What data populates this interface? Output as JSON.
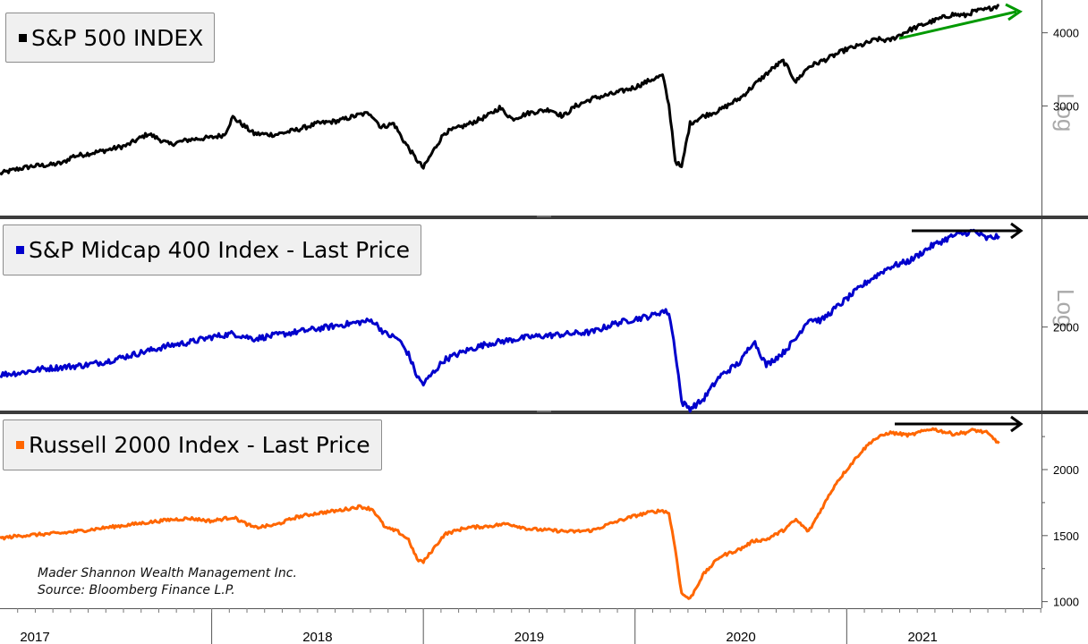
{
  "chart_data": [
    {
      "type": "line",
      "title": "S&P 500 INDEX",
      "scale": "log",
      "scale_label": "Log",
      "ylim": [
        1950,
        4550
      ],
      "yticks": [
        3000,
        4000
      ],
      "color": "#000000",
      "x": [
        2017.0,
        2017.08,
        2017.16,
        2017.24,
        2017.3,
        2017.34,
        2017.4,
        2017.5,
        2017.6,
        2017.7,
        2017.8,
        2017.9,
        2018.0,
        2018.06,
        2018.1,
        2018.2,
        2018.3,
        2018.4,
        2018.5,
        2018.6,
        2018.7,
        2018.75,
        2018.8,
        2018.86,
        2018.9,
        2018.96,
        2019.0,
        2019.1,
        2019.2,
        2019.3,
        2019.36,
        2019.42,
        2019.5,
        2019.6,
        2019.66,
        2019.72,
        2019.8,
        2019.9,
        2020.0,
        2020.08,
        2020.13,
        2020.16,
        2020.19,
        2020.22,
        2020.26,
        2020.32,
        2020.4,
        2020.5,
        2020.58,
        2020.66,
        2020.7,
        2020.76,
        2020.82,
        2020.9,
        2021.0,
        2021.08,
        2021.14,
        2021.2,
        2021.3,
        2021.4,
        2021.5,
        2021.56,
        2021.6,
        2021.66,
        2021.72
      ],
      "values": [
        2300,
        2340,
        2370,
        2380,
        2400,
        2460,
        2480,
        2520,
        2570,
        2690,
        2580,
        2630,
        2650,
        2680,
        2870,
        2690,
        2680,
        2730,
        2800,
        2830,
        2900,
        2915,
        2760,
        2800,
        2640,
        2450,
        2350,
        2700,
        2780,
        2880,
        2980,
        2850,
        2920,
        2960,
        2880,
        3000,
        3090,
        3150,
        3230,
        3330,
        3380,
        3000,
        2420,
        2350,
        2800,
        2880,
        2950,
        3100,
        3300,
        3500,
        3580,
        3300,
        3500,
        3600,
        3750,
        3820,
        3900,
        3880,
        4050,
        4180,
        4300,
        4280,
        4350,
        4380,
        4460
      ]
    },
    {
      "type": "line",
      "title": "S&P Midcap 400 Index - Last Price",
      "scale": "log",
      "scale_label": "Log",
      "ylim": [
        1550,
        2780
      ],
      "yticks": [
        2000
      ],
      "color": "#0000cc",
      "x": [
        2017.0,
        2017.1,
        2017.2,
        2017.3,
        2017.4,
        2017.5,
        2017.6,
        2017.7,
        2017.8,
        2017.9,
        2018.0,
        2018.1,
        2018.2,
        2018.3,
        2018.4,
        2018.5,
        2018.6,
        2018.7,
        2018.76,
        2018.82,
        2018.88,
        2018.93,
        2018.97,
        2019.0,
        2019.1,
        2019.2,
        2019.3,
        2019.4,
        2019.5,
        2019.6,
        2019.7,
        2019.8,
        2019.9,
        2020.0,
        2020.08,
        2020.13,
        2020.16,
        2020.19,
        2020.22,
        2020.26,
        2020.32,
        2020.4,
        2020.5,
        2020.56,
        2020.62,
        2020.7,
        2020.76,
        2020.82,
        2020.88,
        2021.0,
        2021.1,
        2021.2,
        2021.3,
        2021.4,
        2021.5,
        2021.6,
        2021.66,
        2021.72
      ],
      "values": [
        1730,
        1740,
        1760,
        1770,
        1780,
        1800,
        1830,
        1860,
        1890,
        1910,
        1940,
        1960,
        1930,
        1950,
        1970,
        1990,
        2010,
        2030,
        2040,
        1960,
        1930,
        1840,
        1720,
        1680,
        1810,
        1860,
        1900,
        1920,
        1940,
        1950,
        1960,
        1970,
        2020,
        2050,
        2070,
        2100,
        2090,
        1860,
        1590,
        1560,
        1600,
        1720,
        1800,
        1920,
        1780,
        1850,
        1930,
        2050,
        2040,
        2180,
        2300,
        2400,
        2450,
        2560,
        2640,
        2680,
        2620,
        2640
      ]
    },
    {
      "type": "line",
      "title": "Russell 2000 Index - Last Price",
      "scale": "linear",
      "ylim": [
        950,
        2420
      ],
      "yticks": [
        1000,
        1500,
        2000
      ],
      "color": "#ff6600",
      "x": [
        2017.0,
        2017.1,
        2017.2,
        2017.3,
        2017.4,
        2017.5,
        2017.6,
        2017.7,
        2017.8,
        2017.9,
        2018.0,
        2018.1,
        2018.2,
        2018.3,
        2018.4,
        2018.5,
        2018.6,
        2018.7,
        2018.76,
        2018.82,
        2018.88,
        2018.93,
        2018.97,
        2019.0,
        2019.1,
        2019.2,
        2019.3,
        2019.4,
        2019.5,
        2019.6,
        2019.7,
        2019.8,
        2019.9,
        2020.0,
        2020.08,
        2020.13,
        2020.16,
        2020.19,
        2020.22,
        2020.26,
        2020.32,
        2020.4,
        2020.5,
        2020.56,
        2020.62,
        2020.7,
        2020.76,
        2020.82,
        2020.88,
        2020.95,
        2021.0,
        2021.06,
        2021.12,
        2021.2,
        2021.3,
        2021.4,
        2021.5,
        2021.56,
        2021.6,
        2021.66,
        2021.72
      ],
      "values": [
        1480,
        1500,
        1510,
        1520,
        1540,
        1560,
        1580,
        1600,
        1620,
        1630,
        1610,
        1640,
        1560,
        1580,
        1640,
        1670,
        1690,
        1720,
        1700,
        1560,
        1530,
        1470,
        1320,
        1300,
        1510,
        1560,
        1570,
        1590,
        1550,
        1540,
        1530,
        1540,
        1600,
        1650,
        1680,
        1690,
        1670,
        1400,
        1060,
        1020,
        1200,
        1340,
        1400,
        1460,
        1470,
        1540,
        1620,
        1530,
        1700,
        1900,
        2000,
        2120,
        2220,
        2280,
        2260,
        2310,
        2270,
        2280,
        2300,
        2280,
        2200
      ]
    }
  ],
  "x_axis": {
    "year_labels": [
      "2017",
      "2018",
      "2019",
      "2020",
      "2021"
    ]
  },
  "legends": {
    "spx": "S&P 500 INDEX",
    "mid": "S&P Midcap 400 Index - Last Price",
    "rty": "Russell 2000 Index - Last Price"
  },
  "footnote": {
    "line1": "Mader Shannon Wealth Management Inc.",
    "line2": "Source: Bloomberg Finance L.P."
  },
  "annotations": {
    "spx_arrow_color": "#009900",
    "flat_arrow_color": "#000000"
  }
}
